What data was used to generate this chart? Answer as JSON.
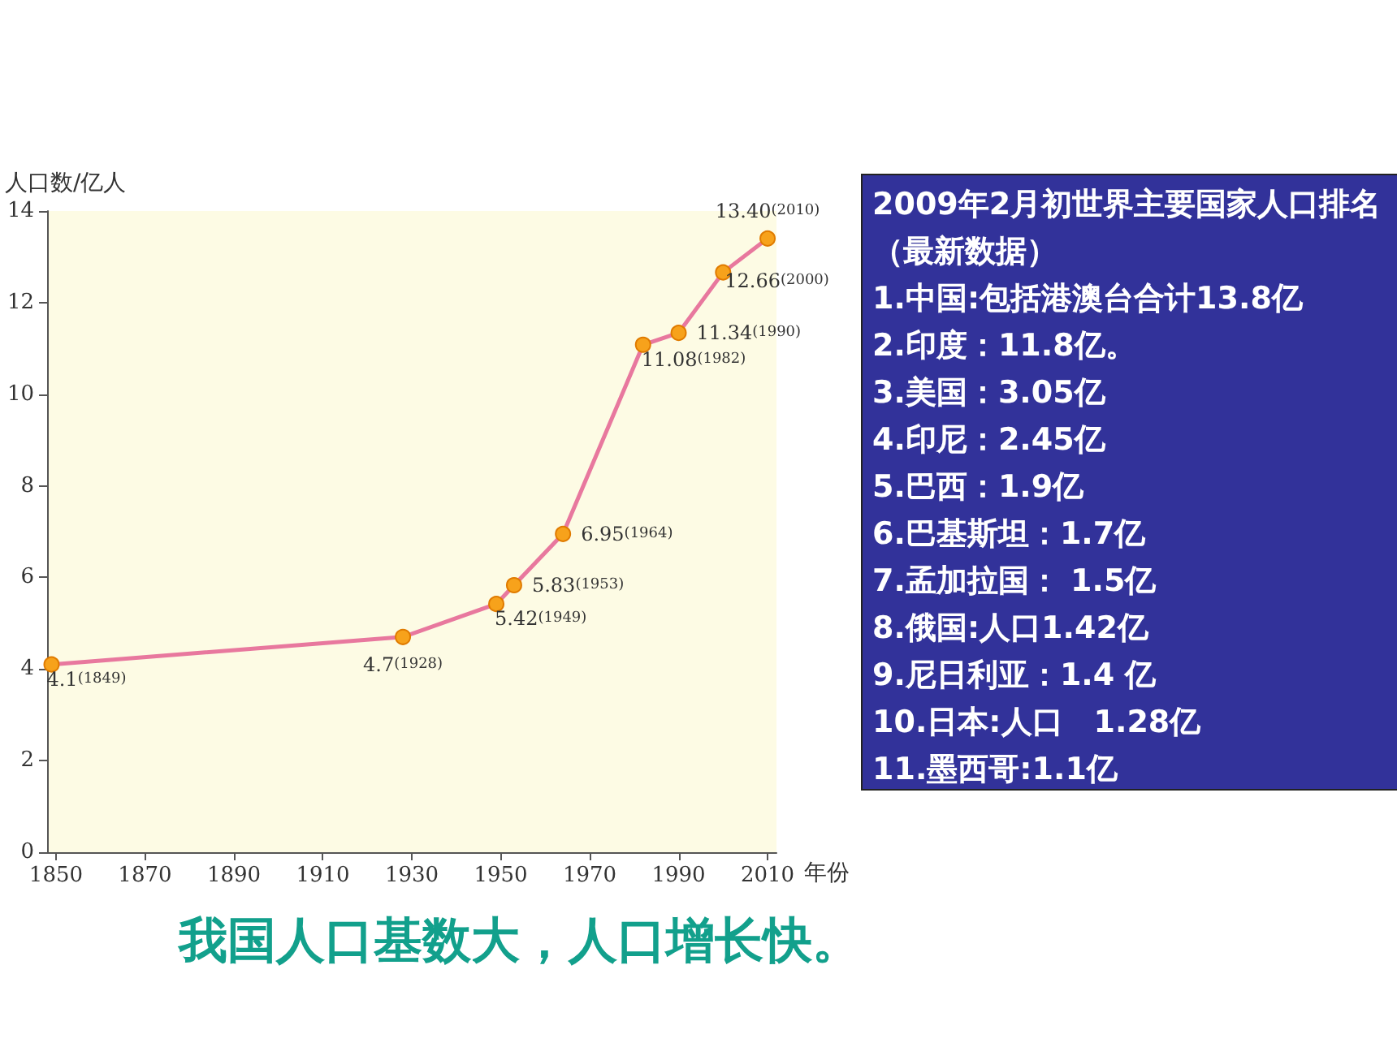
{
  "chart_data": [
    {
      "type": "line",
      "xlabel": "年份",
      "ylabel": "人口数/亿人",
      "x": [
        1849,
        1928,
        1949,
        1953,
        1964,
        1982,
        1990,
        2000,
        2010
      ],
      "series": [
        {
          "color": "#e8789e",
          "values": [
            4.1,
            4.7,
            5.42,
            5.83,
            6.95,
            11.08,
            11.34,
            12.66,
            13.4
          ],
          "value_labels": [
            "4.1(1849)",
            "4.7(1928)",
            "5.42(1949)",
            "5.83(1953)",
            "6.95(1964)",
            "11.08(1982)",
            "11.34(1990)",
            "12.66(2000)",
            "13.40(2010)"
          ]
        }
      ],
      "xlim": [
        1848,
        2012
      ],
      "xticks": [
        1850,
        1870,
        1890,
        1910,
        1930,
        1950,
        1970,
        1990,
        2010
      ],
      "ylim": [
        0,
        14
      ],
      "yticks": [
        0,
        2,
        4,
        6,
        8,
        10,
        12,
        14
      ],
      "grid": false,
      "marker": "circle",
      "annotations": [
        "我国人口基数大，人口增长快。"
      ]
    },
    {
      "type": "other",
      "title": "2009年2月初世界主要国家人口排名（最新数据）",
      "annotations": [
        "1.中国:包括港澳台合计13.8亿",
        "2.印度：11.8亿。",
        "3.美国：3.05亿",
        "4.印尼：2.45亿",
        "5.巴西：1.9亿",
        "6.巴基斯坦：1.7亿",
        "7.孟加拉国： 1.5亿",
        "8.俄国:人口1.42亿",
        "9.尼日利亚：1.4 亿",
        "10.日本:人口　1.28亿",
        "11.墨西哥:1.1亿"
      ]
    }
  ]
}
